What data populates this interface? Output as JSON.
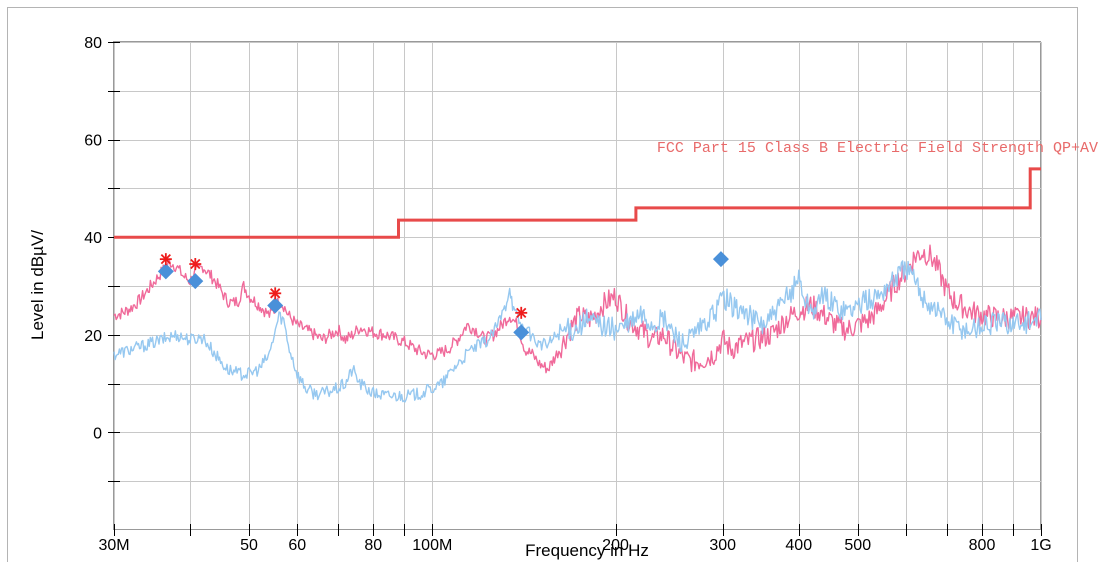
{
  "chart_data": {
    "type": "line",
    "xlabel": "Frequency in Hz",
    "ylabel": "Level in dBµV/",
    "x_scale": "log",
    "xlim": [
      30,
      1000
    ],
    "ylim": [
      -20,
      80
    ],
    "grid": true,
    "y_ticks_labeled": [
      0,
      20,
      40,
      60,
      80
    ],
    "y_ticks_minor": [
      -10,
      10,
      30,
      50,
      70
    ],
    "x_ticks_labeled": [
      {
        "value": 30,
        "label": "30M"
      },
      {
        "value": 50,
        "label": "50"
      },
      {
        "value": 60,
        "label": "60"
      },
      {
        "value": 80,
        "label": "80"
      },
      {
        "value": 100,
        "label": "100M"
      },
      {
        "value": 200,
        "label": "200"
      },
      {
        "value": 300,
        "label": "300"
      },
      {
        "value": 400,
        "label": "400"
      },
      {
        "value": 500,
        "label": "500"
      },
      {
        "value": 800,
        "label": "800"
      },
      {
        "value": 1000,
        "label": "1G"
      }
    ],
    "x_ticks_unlabeled": [
      40,
      70,
      90,
      600,
      700,
      900
    ],
    "limit_line": {
      "name": "FCC Part 15 Class B Electric Field Strength QP+AV",
      "color": "#e84a4a",
      "points": [
        [
          30,
          40
        ],
        [
          88,
          40
        ],
        [
          88,
          43.5
        ],
        [
          216,
          43.5
        ],
        [
          216,
          46
        ],
        [
          960,
          46
        ],
        [
          960,
          54
        ],
        [
          1000,
          54
        ]
      ]
    },
    "series": [
      {
        "color": "#f06a9a",
        "points": [
          [
            30,
            24
          ],
          [
            31,
            24.5
          ],
          [
            32,
            25.5
          ],
          [
            33,
            27
          ],
          [
            34,
            29
          ],
          [
            35,
            31
          ],
          [
            36,
            33
          ],
          [
            37,
            35
          ],
          [
            38,
            34
          ],
          [
            39,
            32
          ],
          [
            40,
            31
          ],
          [
            41,
            33
          ],
          [
            42,
            34
          ],
          [
            43,
            32.5
          ],
          [
            44,
            31
          ],
          [
            45,
            29
          ],
          [
            46,
            27
          ],
          [
            47,
            26.5
          ],
          [
            48,
            27
          ],
          [
            49,
            30
          ],
          [
            50,
            28
          ],
          [
            51,
            27
          ],
          [
            52,
            26
          ],
          [
            53,
            25
          ],
          [
            54,
            24
          ],
          [
            55,
            25
          ],
          [
            56,
            27
          ],
          [
            57,
            26
          ],
          [
            58,
            24
          ],
          [
            60,
            22
          ],
          [
            62,
            21
          ],
          [
            64,
            20
          ],
          [
            66,
            19
          ],
          [
            68,
            20
          ],
          [
            70,
            21
          ],
          [
            72,
            19
          ],
          [
            74,
            20
          ],
          [
            76,
            21.5
          ],
          [
            78,
            21
          ],
          [
            80,
            20.5
          ],
          [
            84,
            20
          ],
          [
            88,
            19
          ],
          [
            90,
            18.5
          ],
          [
            94,
            17
          ],
          [
            98,
            16
          ],
          [
            102,
            16
          ],
          [
            106,
            17
          ],
          [
            110,
            19
          ],
          [
            114,
            22
          ],
          [
            118,
            21
          ],
          [
            122,
            19
          ],
          [
            126,
            20
          ],
          [
            130,
            22
          ],
          [
            134,
            24
          ],
          [
            138,
            22
          ],
          [
            142,
            17
          ],
          [
            146,
            16
          ],
          [
            150,
            14
          ],
          [
            155,
            13
          ],
          [
            160,
            16
          ],
          [
            165,
            19
          ],
          [
            170,
            22
          ],
          [
            175,
            24
          ],
          [
            180,
            23
          ],
          [
            185,
            24
          ],
          [
            190,
            26
          ],
          [
            195,
            27
          ],
          [
            200,
            28
          ],
          [
            210,
            23
          ],
          [
            220,
            21
          ],
          [
            230,
            19
          ],
          [
            240,
            20
          ],
          [
            250,
            17
          ],
          [
            260,
            15
          ],
          [
            270,
            14.5
          ],
          [
            280,
            15
          ],
          [
            290,
            16
          ],
          [
            300,
            19
          ],
          [
            310,
            17
          ],
          [
            320,
            18
          ],
          [
            340,
            19
          ],
          [
            360,
            20
          ],
          [
            380,
            23
          ],
          [
            400,
            25
          ],
          [
            420,
            26
          ],
          [
            440,
            24
          ],
          [
            460,
            22
          ],
          [
            480,
            21
          ],
          [
            500,
            22
          ],
          [
            520,
            23
          ],
          [
            540,
            25
          ],
          [
            560,
            28
          ],
          [
            580,
            31
          ],
          [
            600,
            33
          ],
          [
            620,
            36
          ],
          [
            640,
            37
          ],
          [
            660,
            36
          ],
          [
            680,
            33
          ],
          [
            700,
            29
          ],
          [
            720,
            27
          ],
          [
            740,
            26
          ],
          [
            760,
            25
          ],
          [
            800,
            24
          ],
          [
            850,
            23.5
          ],
          [
            900,
            23.5
          ],
          [
            950,
            23.5
          ],
          [
            1000,
            23.5
          ]
        ]
      },
      {
        "color": "#96c8f0",
        "points": [
          [
            30,
            16
          ],
          [
            31,
            16.5
          ],
          [
            32,
            17
          ],
          [
            34,
            18
          ],
          [
            36,
            19
          ],
          [
            38,
            20
          ],
          [
            40,
            19
          ],
          [
            42,
            19.5
          ],
          [
            44,
            16
          ],
          [
            46,
            13
          ],
          [
            48,
            12
          ],
          [
            50,
            12
          ],
          [
            52,
            13
          ],
          [
            54,
            16
          ],
          [
            55,
            20
          ],
          [
            56,
            24
          ],
          [
            57,
            23
          ],
          [
            58,
            18
          ],
          [
            60,
            12
          ],
          [
            62,
            9
          ],
          [
            64,
            8
          ],
          [
            66,
            8
          ],
          [
            68,
            8.5
          ],
          [
            70,
            9
          ],
          [
            72,
            10
          ],
          [
            74,
            13
          ],
          [
            76,
            10
          ],
          [
            78,
            9
          ],
          [
            80,
            8
          ],
          [
            84,
            7.5
          ],
          [
            88,
            7.5
          ],
          [
            92,
            7.5
          ],
          [
            96,
            8
          ],
          [
            100,
            9
          ],
          [
            104,
            10
          ],
          [
            108,
            13
          ],
          [
            112,
            15
          ],
          [
            116,
            17
          ],
          [
            120,
            18
          ],
          [
            124,
            19
          ],
          [
            128,
            22
          ],
          [
            132,
            26
          ],
          [
            134,
            30
          ],
          [
            136,
            25
          ],
          [
            140,
            22
          ],
          [
            145,
            20
          ],
          [
            150,
            18
          ],
          [
            155,
            18
          ],
          [
            160,
            20
          ],
          [
            165,
            21
          ],
          [
            170,
            21
          ],
          [
            175,
            22
          ],
          [
            180,
            23
          ],
          [
            190,
            22
          ],
          [
            200,
            21
          ],
          [
            210,
            22
          ],
          [
            220,
            24
          ],
          [
            230,
            22
          ],
          [
            240,
            23
          ],
          [
            250,
            20
          ],
          [
            260,
            18
          ],
          [
            270,
            20
          ],
          [
            280,
            22
          ],
          [
            290,
            24
          ],
          [
            300,
            28
          ],
          [
            310,
            26
          ],
          [
            320,
            25
          ],
          [
            330,
            24
          ],
          [
            350,
            22
          ],
          [
            370,
            25
          ],
          [
            390,
            29
          ],
          [
            400,
            32
          ],
          [
            410,
            27
          ],
          [
            420,
            25
          ],
          [
            430,
            26
          ],
          [
            440,
            28
          ],
          [
            460,
            26
          ],
          [
            480,
            25
          ],
          [
            500,
            26
          ],
          [
            520,
            27
          ],
          [
            540,
            28
          ],
          [
            560,
            30
          ],
          [
            580,
            32
          ],
          [
            600,
            34
          ],
          [
            620,
            31
          ],
          [
            640,
            28
          ],
          [
            660,
            26
          ],
          [
            680,
            25
          ],
          [
            700,
            23
          ],
          [
            720,
            22
          ],
          [
            760,
            21
          ],
          [
            800,
            22
          ],
          [
            850,
            22.5
          ],
          [
            900,
            22.5
          ],
          [
            950,
            22.5
          ],
          [
            1000,
            23
          ]
        ]
      }
    ],
    "peak_markers_star": [
      {
        "x": 36.5,
        "y": 35.5
      },
      {
        "x": 40.8,
        "y": 34.5
      },
      {
        "x": 55.2,
        "y": 28.5
      },
      {
        "x": 140,
        "y": 24.5
      }
    ],
    "peak_markers_diamond": [
      {
        "x": 36.5,
        "y": 33
      },
      {
        "x": 40.8,
        "y": 31
      },
      {
        "x": 55.2,
        "y": 26
      },
      {
        "x": 140,
        "y": 20.5
      },
      {
        "x": 298,
        "y": 35.5
      }
    ],
    "marker_colors": {
      "star": "#ee1c1c",
      "diamond": "#4a90d9"
    }
  }
}
